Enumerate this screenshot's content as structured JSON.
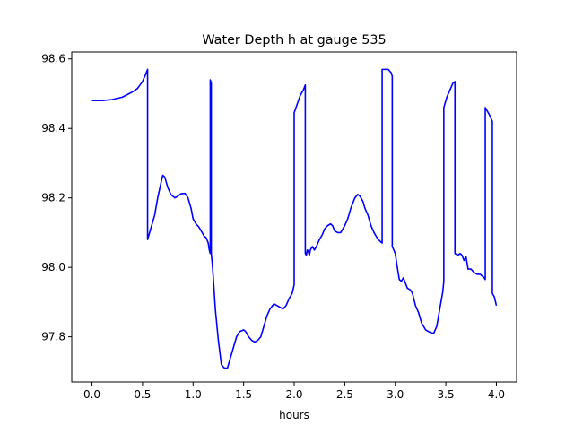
{
  "chart_data": {
    "type": "line",
    "title": "Water Depth h at gauge 535",
    "xlabel": "hours",
    "ylabel": "",
    "xlim": [
      -0.2,
      4.2
    ],
    "ylim": [
      97.67,
      98.62
    ],
    "xticks": [
      0.0,
      0.5,
      1.0,
      1.5,
      2.0,
      2.5,
      3.0,
      3.5,
      4.0
    ],
    "xtick_labels": [
      "0.0",
      "0.5",
      "1.0",
      "1.5",
      "2.0",
      "2.5",
      "3.0",
      "3.5",
      "4.0"
    ],
    "yticks": [
      97.8,
      98.0,
      98.2,
      98.4,
      98.6
    ],
    "ytick_labels": [
      "97.8",
      "98.0",
      "98.2",
      "98.4",
      "98.6"
    ],
    "grid": false,
    "legend": "none",
    "line_color": "#0000ff",
    "series": [
      {
        "x": [
          0.0,
          0.1,
          0.2,
          0.3,
          0.4,
          0.45,
          0.5,
          0.53,
          0.55,
          0.55,
          0.58,
          0.62,
          0.65,
          0.68,
          0.7,
          0.72,
          0.75,
          0.78,
          0.82,
          0.85,
          0.88,
          0.92,
          0.95,
          0.98,
          1.0,
          1.03,
          1.06,
          1.09,
          1.11,
          1.13,
          1.15,
          1.16,
          1.17,
          1.17,
          1.18,
          1.18,
          1.19,
          1.2,
          1.22,
          1.25,
          1.28,
          1.31,
          1.34,
          1.37,
          1.4,
          1.43,
          1.46,
          1.5,
          1.52,
          1.55,
          1.58,
          1.61,
          1.64,
          1.67,
          1.7,
          1.73,
          1.76,
          1.8,
          1.83,
          1.86,
          1.89,
          1.92,
          1.95,
          1.98,
          2.0,
          2.0,
          2.03,
          2.06,
          2.09,
          2.11,
          2.11,
          2.12,
          2.13,
          2.14,
          2.15,
          2.16,
          2.17,
          2.18,
          2.2,
          2.22,
          2.25,
          2.28,
          2.3,
          2.33,
          2.36,
          2.38,
          2.4,
          2.43,
          2.46,
          2.5,
          2.53,
          2.56,
          2.6,
          2.63,
          2.65,
          2.66,
          2.68,
          2.7,
          2.73,
          2.76,
          2.79,
          2.82,
          2.85,
          2.87,
          2.87,
          2.9,
          2.93,
          2.96,
          2.97,
          2.97,
          3.0,
          3.02,
          3.04,
          3.06,
          3.08,
          3.12,
          3.15,
          3.17,
          3.2,
          3.23,
          3.26,
          3.3,
          3.33,
          3.35,
          3.38,
          3.41,
          3.44,
          3.47,
          3.48,
          3.48,
          3.51,
          3.54,
          3.57,
          3.59,
          3.59,
          3.62,
          3.64,
          3.66,
          3.68,
          3.7,
          3.72,
          3.75,
          3.78,
          3.81,
          3.84,
          3.86,
          3.88,
          3.89,
          3.89,
          3.91,
          3.93,
          3.96,
          3.96,
          3.98,
          4.0
        ],
        "y": [
          98.48,
          98.48,
          98.483,
          98.49,
          98.505,
          98.515,
          98.535,
          98.555,
          98.57,
          98.08,
          98.11,
          98.15,
          98.2,
          98.24,
          98.265,
          98.26,
          98.23,
          98.21,
          98.2,
          98.205,
          98.212,
          98.213,
          98.2,
          98.17,
          98.14,
          98.125,
          98.115,
          98.1,
          98.09,
          98.085,
          98.07,
          98.05,
          98.04,
          98.54,
          98.53,
          98.04,
          98.01,
          97.97,
          97.88,
          97.79,
          97.72,
          97.71,
          97.71,
          97.74,
          97.77,
          97.8,
          97.815,
          97.82,
          97.815,
          97.8,
          97.79,
          97.785,
          97.79,
          97.8,
          97.83,
          97.86,
          97.88,
          97.895,
          97.89,
          97.885,
          97.88,
          97.89,
          97.91,
          97.925,
          97.95,
          98.445,
          98.47,
          98.495,
          98.51,
          98.525,
          98.04,
          98.035,
          98.05,
          98.045,
          98.035,
          98.05,
          98.055,
          98.06,
          98.05,
          98.06,
          98.08,
          98.095,
          98.11,
          98.12,
          98.125,
          98.12,
          98.105,
          98.1,
          98.1,
          98.12,
          98.14,
          98.17,
          98.2,
          98.21,
          98.205,
          98.2,
          98.19,
          98.17,
          98.15,
          98.12,
          98.1,
          98.085,
          98.075,
          98.07,
          98.57,
          98.57,
          98.57,
          98.56,
          98.55,
          98.06,
          98.04,
          98.0,
          97.965,
          97.96,
          97.97,
          97.94,
          97.935,
          97.925,
          97.89,
          97.87,
          97.84,
          97.82,
          97.815,
          97.812,
          97.81,
          97.83,
          97.88,
          97.93,
          97.96,
          98.46,
          98.49,
          98.51,
          98.53,
          98.535,
          98.04,
          98.035,
          98.04,
          98.035,
          98.02,
          98.03,
          97.995,
          97.995,
          97.985,
          97.98,
          97.98,
          97.975,
          97.97,
          97.965,
          98.46,
          98.45,
          98.44,
          98.42,
          97.925,
          97.915,
          97.89
        ]
      }
    ]
  }
}
